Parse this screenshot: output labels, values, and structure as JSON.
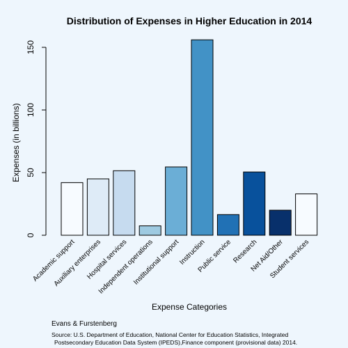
{
  "chart_data": {
    "type": "bar",
    "title": "Distribution of Expenses in Higher Education in 2014",
    "xlabel": "Expense Categories",
    "ylabel": "Expenses (in billions)",
    "ylim": [
      0,
      160
    ],
    "yticks": [
      0,
      50,
      100,
      150
    ],
    "categories": [
      "Academic support",
      "Auxiliary enterprises",
      "Hospital services",
      "Independent operations",
      "Institutional support",
      "Instruction",
      "Public service",
      "Research",
      "Net Aid/Other",
      "Student services"
    ],
    "values": [
      42,
      45,
      51.5,
      7.5,
      54.5,
      156,
      16.5,
      50.5,
      20,
      33
    ],
    "colors": [
      "#f7fbff",
      "#deebf7",
      "#c6dbef",
      "#9ecae1",
      "#6baed6",
      "#4292c6",
      "#2171b5",
      "#08519c",
      "#08306b",
      "#f7fbff"
    ],
    "grid": false,
    "legend": "none"
  },
  "footer": {
    "credit": "Evans & Furstenberg",
    "source_line1": "Source: U.S. Department of Education, National Center for Education Statistics, Integrated",
    "source_line2": "Postsecondary Education Data System (IPEDS),Finance component (provisional data) 2014."
  }
}
